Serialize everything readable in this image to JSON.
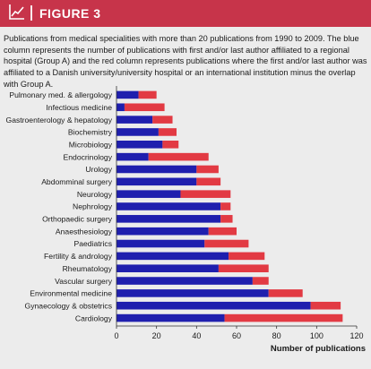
{
  "header": {
    "title": "FIGURE 3",
    "icon": "line-chart-icon",
    "color": "#c7344a"
  },
  "caption": "Publications from medical specialities with more than 20 publications from 1990 to 2009. The blue column represents the number of publications with first and/or last author affiliated to a regional hospital (Group A) and the red column represents publications where the first and/or last author was affiliated to a Danish university/university hospital or an international institution minus the overlap with Group A.",
  "chart_data": {
    "type": "bar",
    "orientation": "horizontal",
    "stacked": true,
    "categories": [
      "Pulmonary med. & allergology",
      "Infectious medicine",
      "Gastroenterology & hepatology",
      "Biochemistry",
      "Microbiology",
      "Endocrinology",
      "Urology",
      "Abdomminal surgery",
      "Neurology",
      "Nephrology",
      "Orthopaedic surgery",
      "Anaesthesiology",
      "Paediatrics",
      "Fertility & andrology",
      "Rheumatology",
      "Vascular surgery",
      "Environmental medicine",
      "Gynaecology & obstetrics",
      "Cardiology"
    ],
    "series": [
      {
        "values": [
          11,
          4,
          18,
          21,
          23,
          16,
          40,
          40,
          32,
          52,
          52,
          46,
          44,
          56,
          51,
          68,
          76,
          97,
          54
        ],
        "color": "#1f1fae"
      },
      {
        "values": [
          9,
          20,
          10,
          9,
          8,
          30,
          11,
          12,
          25,
          5,
          6,
          14,
          22,
          18,
          25,
          8,
          17,
          15,
          59
        ],
        "color": "#e23a43"
      }
    ],
    "xlim": [
      0,
      120
    ],
    "xticks": [
      0,
      20,
      40,
      60,
      80,
      100,
      120
    ],
    "xlabel": "Number of publications",
    "ylabel": "",
    "grid": false,
    "legend": "none"
  }
}
